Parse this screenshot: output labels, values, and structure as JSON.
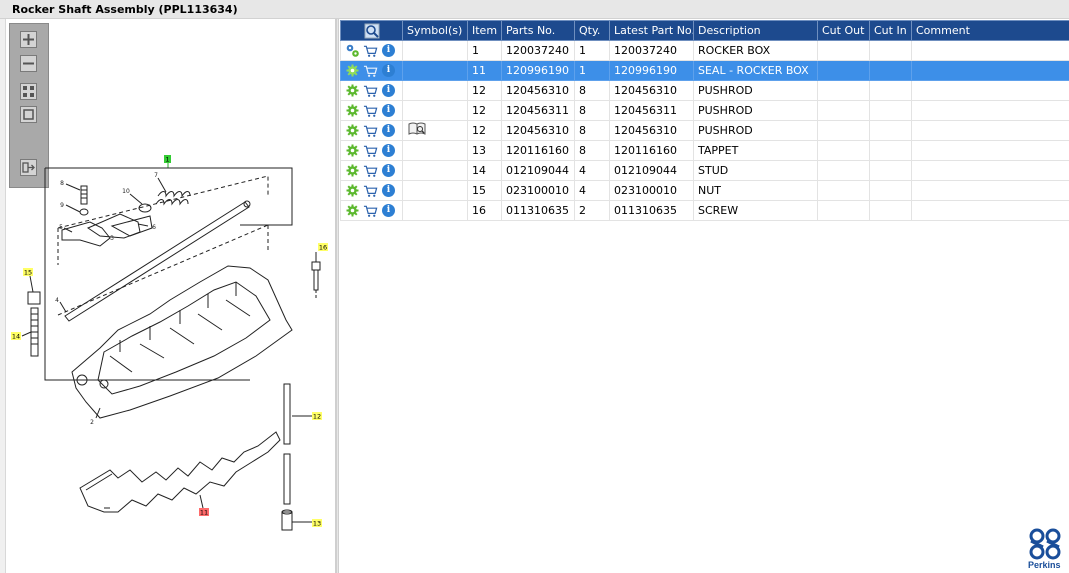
{
  "window": {
    "title": "Rocker Shaft Assembly (PPL113634)"
  },
  "colors": {
    "header": "#1d4a8e",
    "selected": "#3d8fe8",
    "callout_yellow": "#ffff66",
    "callout_red": "#ff6b6b",
    "callout_green": "#33cc33",
    "brand": "#1a4e9a"
  },
  "zoom_toolbar": {
    "buttons": [
      "zoom-in-icon",
      "zoom-out-icon",
      "fit-all-icon",
      "fit-window-icon",
      "export-icon"
    ]
  },
  "diagram": {
    "callouts": [
      {
        "label": "1",
        "style": "green"
      },
      {
        "label": "16",
        "style": "yellow"
      },
      {
        "label": "15",
        "style": "yellow"
      },
      {
        "label": "14",
        "style": "yellow"
      },
      {
        "label": "12",
        "style": "yellow"
      },
      {
        "label": "13",
        "style": "yellow"
      },
      {
        "label": "11",
        "style": "red"
      }
    ],
    "part_numbers": [
      "8",
      "9",
      "7",
      "10",
      "5",
      "6",
      "3",
      "4",
      "2"
    ]
  },
  "grid": {
    "columns": [
      "",
      "Symbol(s)",
      "Item",
      "Parts No.",
      "Qty.",
      "Latest Part No.",
      "Description",
      "Cut Out",
      "Cut In",
      "Comment"
    ],
    "rows": [
      {
        "item": "1",
        "parts_no": "120037240",
        "qty": "1",
        "latest": "120037240",
        "desc": "ROCKER BOX",
        "cut_out": "",
        "cut_in": "",
        "comment": "",
        "symbol": "",
        "lead_icon": "assembly-gears-icon",
        "selected": false
      },
      {
        "item": "11",
        "parts_no": "120996190",
        "qty": "1",
        "latest": "120996190",
        "desc": "SEAL - ROCKER BOX",
        "cut_out": "",
        "cut_in": "",
        "comment": "",
        "symbol": "",
        "lead_icon": "gear-icon",
        "selected": true
      },
      {
        "item": "12",
        "parts_no": "120456310",
        "qty": "8",
        "latest": "120456310",
        "desc": "PUSHROD",
        "cut_out": "",
        "cut_in": "",
        "comment": "",
        "symbol": "",
        "lead_icon": "gear-icon",
        "selected": false
      },
      {
        "item": "12",
        "parts_no": "120456311",
        "qty": "8",
        "latest": "120456311",
        "desc": "PUSHROD",
        "cut_out": "",
        "cut_in": "",
        "comment": "",
        "symbol": "",
        "lead_icon": "gear-icon",
        "selected": false
      },
      {
        "item": "12",
        "parts_no": "120456310",
        "qty": "8",
        "latest": "120456310",
        "desc": "PUSHROD",
        "cut_out": "",
        "cut_in": "",
        "comment": "",
        "symbol": "book-icon",
        "lead_icon": "gear-icon",
        "selected": false
      },
      {
        "item": "13",
        "parts_no": "120116160",
        "qty": "8",
        "latest": "120116160",
        "desc": "TAPPET",
        "cut_out": "",
        "cut_in": "",
        "comment": "",
        "symbol": "",
        "lead_icon": "gear-icon",
        "selected": false
      },
      {
        "item": "14",
        "parts_no": "012109044",
        "qty": "4",
        "latest": "012109044",
        "desc": "STUD",
        "cut_out": "",
        "cut_in": "",
        "comment": "",
        "symbol": "",
        "lead_icon": "gear-icon",
        "selected": false
      },
      {
        "item": "15",
        "parts_no": "023100010",
        "qty": "4",
        "latest": "023100010",
        "desc": "NUT",
        "cut_out": "",
        "cut_in": "",
        "comment": "",
        "symbol": "",
        "lead_icon": "gear-icon",
        "selected": false
      },
      {
        "item": "16",
        "parts_no": "011310635",
        "qty": "2",
        "latest": "011310635",
        "desc": "SCREW",
        "cut_out": "",
        "cut_in": "",
        "comment": "",
        "symbol": "",
        "lead_icon": "gear-icon",
        "selected": false
      }
    ]
  },
  "brand": {
    "name": "Perkins",
    "logo_icon": "perkins-logo-icon"
  }
}
